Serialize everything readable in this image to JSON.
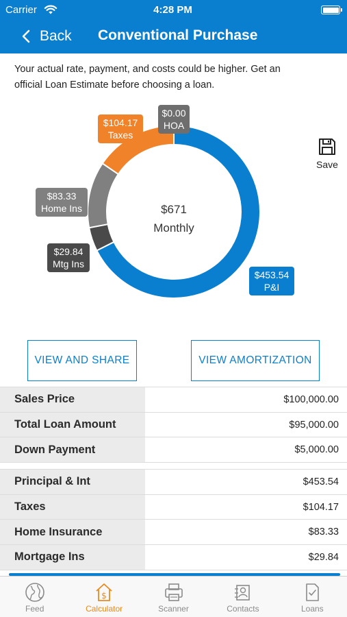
{
  "status_bar": {
    "carrier": "Carrier",
    "time": "4:28 PM"
  },
  "nav": {
    "back_label": "Back",
    "title": "Conventional Purchase"
  },
  "disclaimer": "Your actual rate, payment, and costs could be higher. Get an official Loan Estimate before choosing a loan.",
  "chart_data": {
    "type": "pie",
    "center_value": "$671",
    "center_label": "Monthly",
    "slices": [
      {
        "name": "P&I",
        "label": "$453.54",
        "value": 453.54,
        "color": "#0a7fcf"
      },
      {
        "name": "Mtg Ins",
        "label": "$29.84",
        "value": 29.84,
        "color": "#4a4a4a"
      },
      {
        "name": "Home Ins",
        "label": "$83.33",
        "value": 83.33,
        "color": "#808080"
      },
      {
        "name": "Taxes",
        "label": "$104.17",
        "value": 104.17,
        "color": "#f0832a"
      },
      {
        "name": "HOA",
        "label": "$0.00",
        "value": 0.0,
        "color": "#6e6e6e"
      }
    ]
  },
  "save_label": "Save",
  "buttons": {
    "view_share": "VIEW AND SHARE",
    "view_amortization": "VIEW AMORTIZATION"
  },
  "loan_table": [
    {
      "label": "Sales Price",
      "value": "$100,000.00"
    },
    {
      "label": "Total Loan Amount",
      "value": "$95,000.00"
    },
    {
      "label": "Down Payment",
      "value": "$5,000.00"
    }
  ],
  "payment_table": [
    {
      "label": "Principal & Int",
      "value": "$453.54"
    },
    {
      "label": "Taxes",
      "value": "$104.17"
    },
    {
      "label": "Home Insurance",
      "value": "$83.33"
    },
    {
      "label": "Mortgage Ins",
      "value": "$29.84"
    }
  ],
  "tabs": [
    {
      "label": "Feed",
      "icon": "globe-icon",
      "active": false
    },
    {
      "label": "Calculator",
      "icon": "calculator-icon",
      "active": true
    },
    {
      "label": "Scanner",
      "icon": "printer-icon",
      "active": false
    },
    {
      "label": "Contacts",
      "icon": "contacts-icon",
      "active": false
    },
    {
      "label": "Loans",
      "icon": "document-check-icon",
      "active": false
    }
  ],
  "colors": {
    "brand_blue": "#0a7fcf",
    "accent_orange": "#e88a1e"
  }
}
